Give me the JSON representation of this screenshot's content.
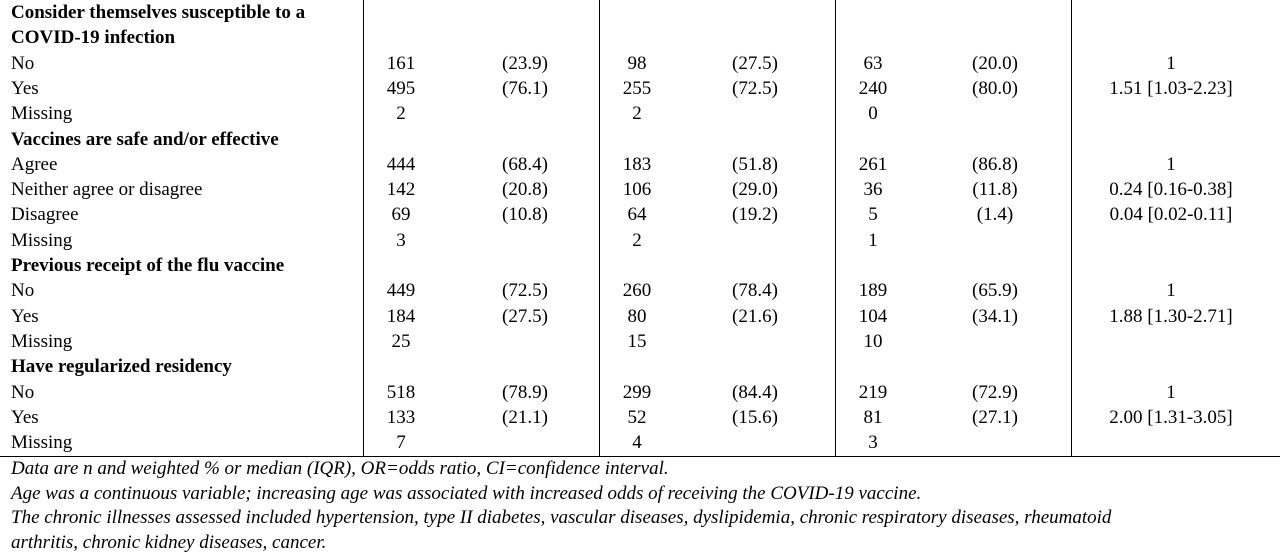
{
  "rows": [
    {
      "type": "section",
      "label": "Consider themselves susceptible to a\nCOVID-19 infection"
    },
    {
      "type": "row",
      "label": "No",
      "n1": "161",
      "p1": "(23.9)",
      "n2": "98",
      "p2": "(27.5)",
      "n3": "63",
      "p3": "(20.0)",
      "or": "1"
    },
    {
      "type": "row",
      "label": "Yes",
      "n1": "495",
      "p1": "(76.1)",
      "n2": "255",
      "p2": "(72.5)",
      "n3": "240",
      "p3": "(80.0)",
      "or": "1.51 [1.03-2.23]"
    },
    {
      "type": "row",
      "label": "Missing",
      "n1": "2",
      "p1": "",
      "n2": "2",
      "p2": "",
      "n3": "0",
      "p3": "",
      "or": ""
    },
    {
      "type": "section",
      "label": "Vaccines are safe and/or effective"
    },
    {
      "type": "row",
      "label": "Agree",
      "n1": "444",
      "p1": "(68.4)",
      "n2": "183",
      "p2": "(51.8)",
      "n3": "261",
      "p3": "(86.8)",
      "or": "1"
    },
    {
      "type": "row",
      "label": "Neither agree or disagree",
      "n1": "142",
      "p1": "(20.8)",
      "n2": "106",
      "p2": "(29.0)",
      "n3": "36",
      "p3": "(11.8)",
      "or": "0.24 [0.16-0.38]"
    },
    {
      "type": "row",
      "label": "Disagree",
      "n1": "69",
      "p1": "(10.8)",
      "n2": "64",
      "p2": "(19.2)",
      "n3": "5",
      "p3": "(1.4)",
      "or": "0.04 [0.02-0.11]"
    },
    {
      "type": "row",
      "label": "Missing",
      "n1": "3",
      "p1": "",
      "n2": "2",
      "p2": "",
      "n3": "1",
      "p3": "",
      "or": ""
    },
    {
      "type": "section",
      "label": "Previous receipt of the flu vaccine"
    },
    {
      "type": "row",
      "label": "No",
      "n1": "449",
      "p1": "(72.5)",
      "n2": "260",
      "p2": "(78.4)",
      "n3": "189",
      "p3": "(65.9)",
      "or": "1"
    },
    {
      "type": "row",
      "label": "Yes",
      "n1": "184",
      "p1": "(27.5)",
      "n2": "80",
      "p2": "(21.6)",
      "n3": "104",
      "p3": "(34.1)",
      "or": "1.88 [1.30-2.71]"
    },
    {
      "type": "row",
      "label": "Missing",
      "n1": "25",
      "p1": "",
      "n2": "15",
      "p2": "",
      "n3": "10",
      "p3": "",
      "or": ""
    },
    {
      "type": "section",
      "label": "Have regularized residency"
    },
    {
      "type": "row",
      "label": "No",
      "n1": "518",
      "p1": "(78.9)",
      "n2": "299",
      "p2": "(84.4)",
      "n3": "219",
      "p3": "(72.9)",
      "or": "1"
    },
    {
      "type": "row",
      "label": "Yes",
      "n1": "133",
      "p1": "(21.1)",
      "n2": "52",
      "p2": "(15.6)",
      "n3": "81",
      "p3": "(27.1)",
      "or": "2.00 [1.31-3.05]"
    },
    {
      "type": "row",
      "label": "Missing",
      "n1": "7",
      "p1": "",
      "n2": "4",
      "p2": "",
      "n3": "3",
      "p3": "",
      "or": ""
    }
  ],
  "notes": [
    "Data are n and weighted % or median (IQR), OR=odds ratio, CI=confidence interval.",
    "Age was a continuous variable; increasing age was associated with increased odds of receiving the COVID-19 vaccine.",
    "The chronic illnesses assessed included hypertension, type II diabetes, vascular diseases, dyslipidemia, chronic respiratory diseases, rheumatoid\narthritis, chronic kidney diseases, cancer."
  ]
}
